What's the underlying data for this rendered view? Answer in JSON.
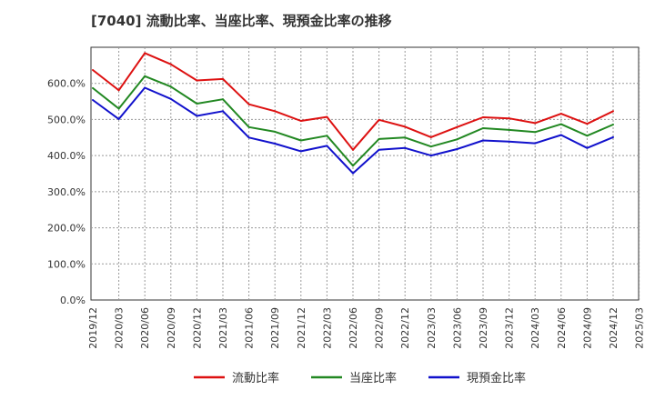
{
  "chart_data": {
    "type": "line",
    "title": "[7040]  流動比率、当座比率、現預金比率の推移",
    "xlabel": "",
    "ylabel": "",
    "ylim": [
      0,
      700
    ],
    "yticks": [
      0,
      100,
      200,
      300,
      400,
      500,
      600
    ],
    "ytick_labels": [
      "0.0%",
      "100.0%",
      "200.0%",
      "300.0%",
      "400.0%",
      "500.0%",
      "600.0%"
    ],
    "categories": [
      "2019/12",
      "2020/03",
      "2020/06",
      "2020/09",
      "2020/12",
      "2021/03",
      "2021/06",
      "2021/09",
      "2021/12",
      "2022/03",
      "2022/06",
      "2022/09",
      "2022/12",
      "2023/03",
      "2023/06",
      "2023/09",
      "2023/12",
      "2024/03",
      "2024/06",
      "2024/09",
      "2024/12",
      "2025/03"
    ],
    "grid": true,
    "legend_position": "bottom",
    "series": [
      {
        "name": "流動比率",
        "color": "#dd1111",
        "values": [
          637,
          581,
          684,
          653,
          608,
          612,
          542,
          523,
          496,
          507,
          416,
          499,
          480,
          451,
          479,
          506,
          503,
          490,
          516,
          488,
          523,
          null
        ]
      },
      {
        "name": "当座比率",
        "color": "#228822",
        "values": [
          587,
          530,
          620,
          591,
          544,
          556,
          479,
          466,
          442,
          455,
          372,
          446,
          450,
          425,
          445,
          476,
          471,
          465,
          487,
          455,
          486,
          null
        ]
      },
      {
        "name": "現預金比率",
        "color": "#1111cc",
        "values": [
          554,
          501,
          588,
          557,
          510,
          523,
          450,
          433,
          412,
          427,
          351,
          416,
          421,
          400,
          418,
          442,
          439,
          434,
          457,
          421,
          451,
          null
        ]
      }
    ]
  }
}
